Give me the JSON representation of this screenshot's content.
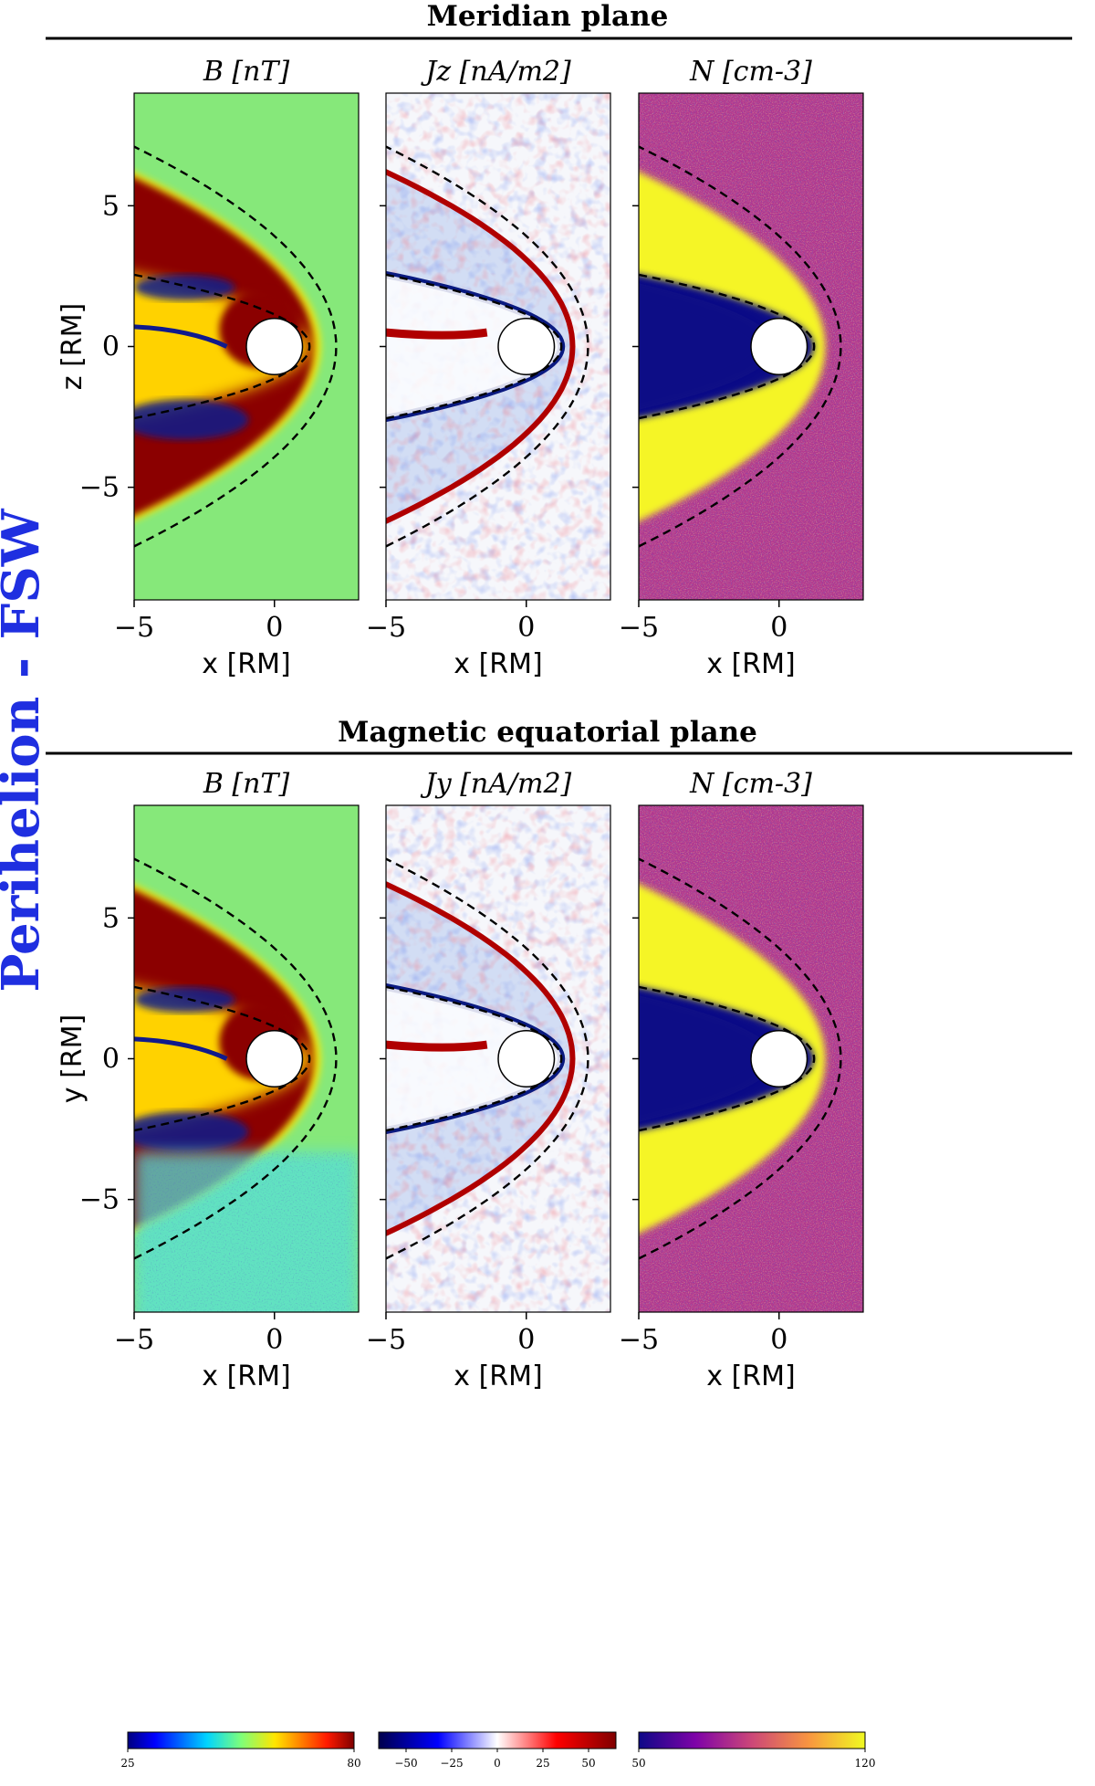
{
  "side_title": "Perihelion - FSW",
  "colors": {
    "side_title": "#1f2fe0",
    "dashed": "#000000",
    "planet_fill": "#ffffff",
    "B_background": "#86e87a",
    "B_high": "#8b0000",
    "B_low": "#101a8c",
    "J_background": "#f6f7fb",
    "J_pos": "#b00000",
    "J_neg": "#0a1a80",
    "N_background": "#b1378f",
    "N_high": "#f5f526",
    "N_low": "#0b0b86"
  },
  "chart_data": [
    {
      "section": "Meridian plane",
      "panels": [
        {
          "type": "heatmap",
          "title": "B [nT]",
          "quantity": "B",
          "xlabel": "x [RM]",
          "ylabel": "z [RM]",
          "xlim": [
            -5,
            3
          ],
          "ylim": [
            -9,
            9
          ],
          "xticks": [
            -5,
            0
          ],
          "yticks": [
            5,
            0,
            -5
          ],
          "xtick_labels": [
            "−5",
            "0"
          ],
          "ytick_labels": [
            "5",
            "0",
            "−5"
          ],
          "colormap": "jet"
        },
        {
          "type": "heatmap",
          "title": "Jz [nA/m2]",
          "quantity": "J",
          "xlabel": "x [RM]",
          "xlim": [
            -5,
            3
          ],
          "ylim": [
            -9,
            9
          ],
          "xticks": [
            -5,
            0
          ],
          "xtick_labels": [
            "−5",
            "0"
          ],
          "colormap": "seismic"
        },
        {
          "type": "heatmap",
          "title": "N [cm-3]",
          "quantity": "N",
          "xlabel": "x [RM]",
          "xlim": [
            -5,
            3
          ],
          "ylim": [
            -9,
            9
          ],
          "xticks": [
            -5,
            0
          ],
          "xtick_labels": [
            "−5",
            "0"
          ],
          "colormap": "plasma"
        }
      ]
    },
    {
      "section": "Magnetic equatorial plane",
      "panels": [
        {
          "type": "heatmap",
          "title": "B [nT]",
          "quantity": "B",
          "xlabel": "x [RM]",
          "ylabel": "y [RM]",
          "xlim": [
            -5,
            3
          ],
          "ylim": [
            -9,
            9
          ],
          "xticks": [
            -5,
            0
          ],
          "yticks": [
            5,
            0,
            -5
          ],
          "xtick_labels": [
            "−5",
            "0"
          ],
          "ytick_labels": [
            "5",
            "0",
            "−5"
          ],
          "colormap": "jet"
        },
        {
          "type": "heatmap",
          "title": "Jy [nA/m2]",
          "quantity": "J",
          "xlabel": "x [RM]",
          "xlim": [
            -5,
            3
          ],
          "ylim": [
            -9,
            9
          ],
          "xticks": [
            -5,
            0
          ],
          "xtick_labels": [
            "−5",
            "0"
          ],
          "colormap": "seismic"
        },
        {
          "type": "heatmap",
          "title": "N [cm-3]",
          "quantity": "N",
          "xlabel": "x [RM]",
          "xlim": [
            -5,
            3
          ],
          "ylim": [
            -9,
            9
          ],
          "xticks": [
            -5,
            0
          ],
          "xtick_labels": [
            "−5",
            "0"
          ],
          "colormap": "plasma"
        }
      ]
    }
  ],
  "boundaries": {
    "bow_shock": {
      "nose_x": 2.2,
      "tail_x": -5,
      "tail_halfwidth": 7.1
    },
    "magnetopause": {
      "nose_x": 1.25,
      "tail_x": -5,
      "tail_halfwidth": 2.55
    },
    "planet": {
      "center_x": 0,
      "center_y": 0,
      "radius": 1.0
    }
  },
  "colorbars": [
    {
      "name": "B",
      "min": 25,
      "max": 80,
      "tick_labels": [
        "25",
        "80"
      ],
      "tick_values": [
        25,
        80
      ]
    },
    {
      "name": "J",
      "min": -65,
      "max": 65,
      "tick_labels": [
        "−50",
        "−25",
        "0",
        "25",
        "50"
      ],
      "tick_values": [
        -50,
        -25,
        0,
        25,
        50
      ]
    },
    {
      "name": "N",
      "min": 50,
      "max": 120,
      "tick_labels": [
        "50",
        "120"
      ],
      "tick_values": [
        50,
        120
      ]
    }
  ]
}
